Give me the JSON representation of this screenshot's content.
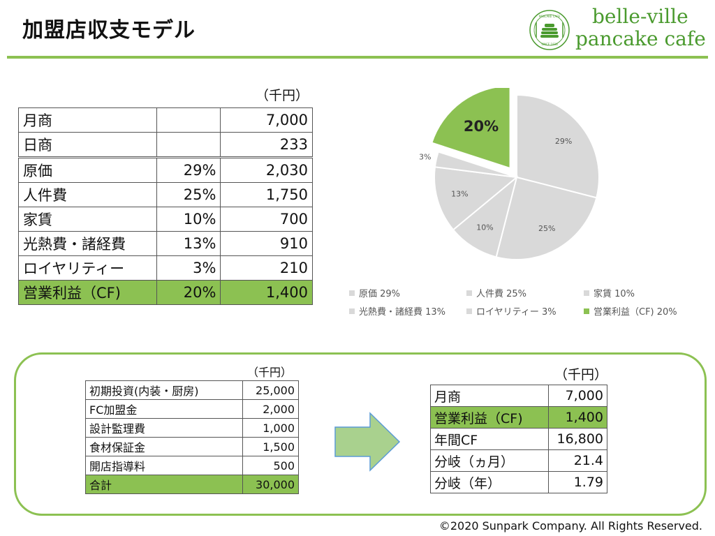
{
  "header": {
    "title": "加盟店収支モデル",
    "logo_line1": "belle-ville",
    "logo_line2": "pancake cafe",
    "logo_badge_top": "PANCAKE CAFE",
    "logo_badge_bottom": "SINCE 1938"
  },
  "pl_table": {
    "unit": "（千円）",
    "rows": [
      {
        "label": "月商",
        "pct": "",
        "value": "7,000"
      },
      {
        "label": "日商",
        "pct": "",
        "value": "233"
      },
      {
        "label": "原価",
        "pct": "29%",
        "value": "2,030"
      },
      {
        "label": "人件費",
        "pct": "25%",
        "value": "1,750"
      },
      {
        "label": "家賃",
        "pct": "10%",
        "value": "700"
      },
      {
        "label": "光熱費・諸経費",
        "pct": "13%",
        "value": "910"
      },
      {
        "label": "ロイヤリティー",
        "pct": "3%",
        "value": "210"
      },
      {
        "label": "営業利益（CF)",
        "pct": "20%",
        "value": "1,400"
      }
    ]
  },
  "chart_data": {
    "type": "pie",
    "categories": [
      "原価",
      "人件費",
      "家賃",
      "光熱費・諸経費",
      "ロイヤリティー",
      "営業利益（CF)"
    ],
    "values": [
      29,
      25,
      10,
      13,
      3,
      20
    ],
    "data_labels": [
      "29%",
      "25%",
      "10%",
      "13%",
      "3%",
      "20%"
    ],
    "legend": [
      "原価 29%",
      "人件費 25%",
      "家賃 10%",
      "光熱費・諸経費 13%",
      "ロイヤリティー 3%",
      "営業利益（CF) 20%"
    ],
    "legend_position": "bottom",
    "exploded": "営業利益（CF)",
    "colors": {
      "default": "#d9d9d9",
      "highlight": "#8cc152"
    }
  },
  "investment_table": {
    "unit": "（千円）",
    "rows": [
      {
        "label": "初期投資(内装・厨房)",
        "value": "25,000"
      },
      {
        "label": "FC加盟金",
        "value": "2,000"
      },
      {
        "label": "設計監理費",
        "value": "1,000"
      },
      {
        "label": "食材保証金",
        "value": "1,500"
      },
      {
        "label": "開店指導料",
        "value": "500"
      },
      {
        "label": "合計",
        "value": "30,000"
      }
    ]
  },
  "payback_table": {
    "unit": "（千円）",
    "rows": [
      {
        "label": "月商",
        "value": "7,000"
      },
      {
        "label": "営業利益（CF)",
        "value": "1,400"
      },
      {
        "label": "年間CF",
        "value": "16,800"
      },
      {
        "label": "分岐（ヵ月）",
        "value": "21.4"
      },
      {
        "label": "分岐（年）",
        "value": "1.79"
      }
    ]
  },
  "footer": {
    "copyright": "©2020 Sunpark Company. All Rights Reserved."
  }
}
